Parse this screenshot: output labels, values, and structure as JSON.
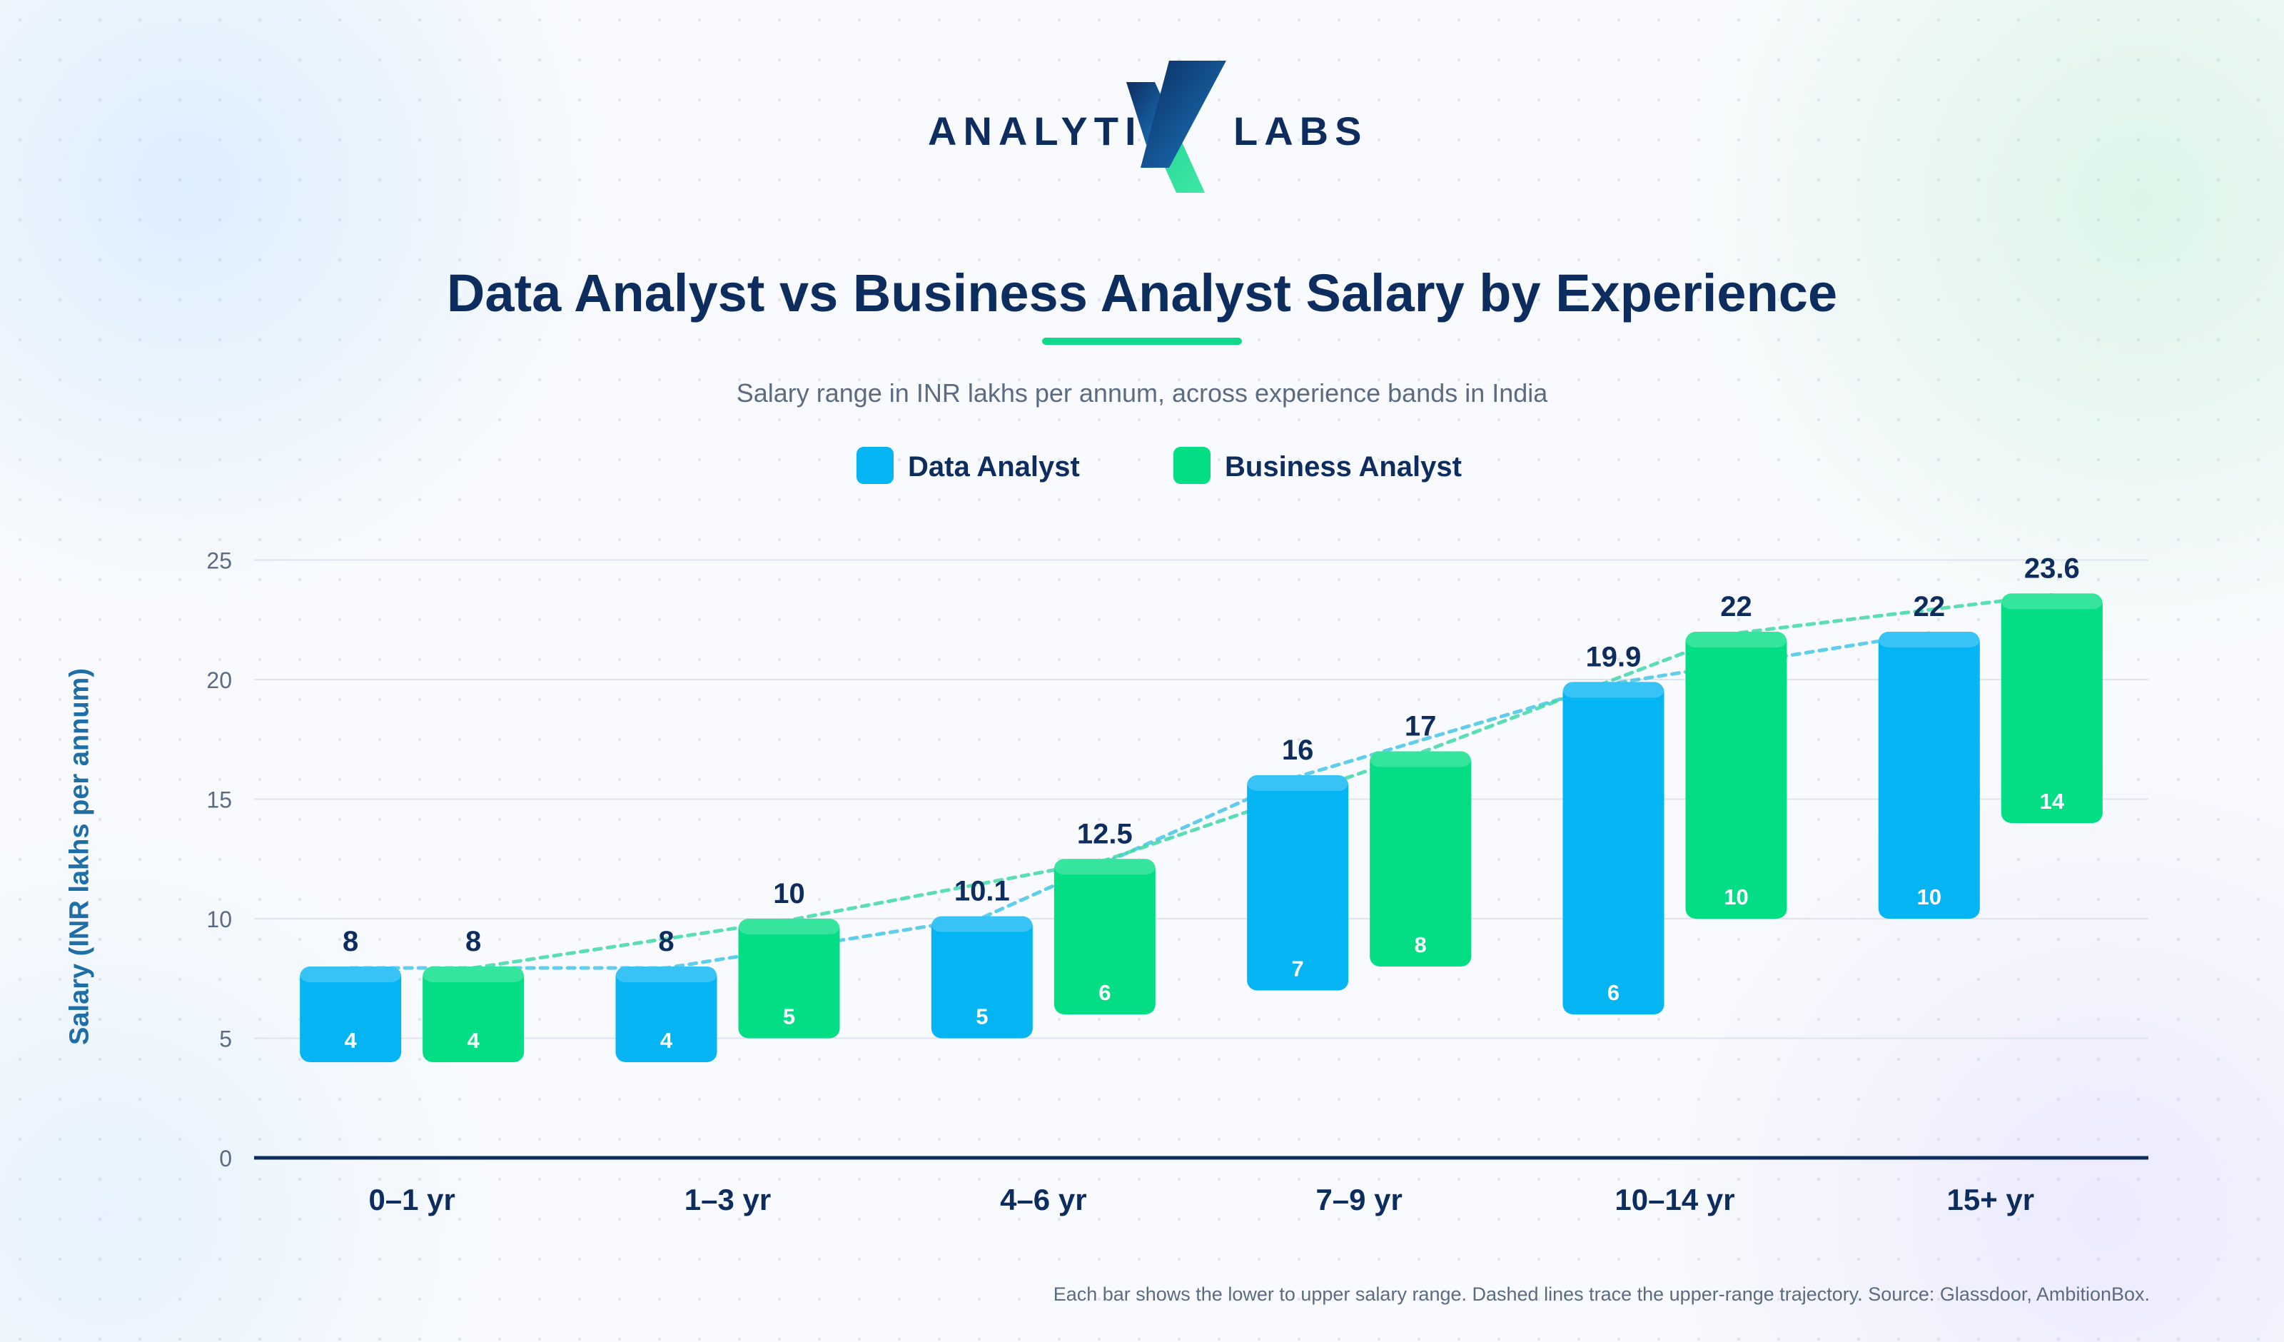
{
  "brand": {
    "left_word": "ANALYTI",
    "right_word": "LABS",
    "logo_colors": {
      "navy": "#0d2d5f",
      "blue": "#1a78c2",
      "green": "#22dd96"
    }
  },
  "header": {
    "title": "Data Analyst vs Business Analyst Salary by Experience",
    "subtitle": "Salary range in INR lakhs per annum, across experience bands in India"
  },
  "footer": {
    "note": "Each bar shows the lower to upper salary range. Dashed lines trace the upper-range trajectory. Source: Glassdoor, AmbitionBox."
  },
  "colors": {
    "data_analyst": "#05b5f3",
    "business_analyst": "#03de85",
    "text_dark": "#0d2d5f",
    "axis": "#0d2d5f",
    "grid": "#dde4ee",
    "accent": "#10d98a"
  },
  "chart_data": {
    "type": "bar",
    "subtype": "floating-range",
    "title": "Data Analyst vs Business Analyst Salary by Experience",
    "subtitle": "Salary range in INR lakhs per annum, across experience bands in India",
    "xlabel": "",
    "ylabel": "Salary (INR lakhs per annum)",
    "ylim": [
      0,
      25
    ],
    "yticks": [
      0,
      5,
      10,
      15,
      20,
      25
    ],
    "grid": true,
    "legend_position": "top-center",
    "categories": [
      "0–1 yr",
      "1–3 yr",
      "4–6 yr",
      "7–9 yr",
      "10–14 yr",
      "15+ yr"
    ],
    "series": [
      {
        "name": "Data Analyst",
        "color": "#05b5f3",
        "low": [
          4,
          4,
          5,
          7,
          6,
          10
        ],
        "high": [
          8,
          8,
          10.1,
          16,
          19.9,
          22
        ]
      },
      {
        "name": "Business Analyst",
        "color": "#03de85",
        "low": [
          4,
          5,
          6,
          8,
          10,
          14
        ],
        "high": [
          8,
          10,
          12.5,
          17,
          22,
          23.6
        ]
      }
    ]
  }
}
